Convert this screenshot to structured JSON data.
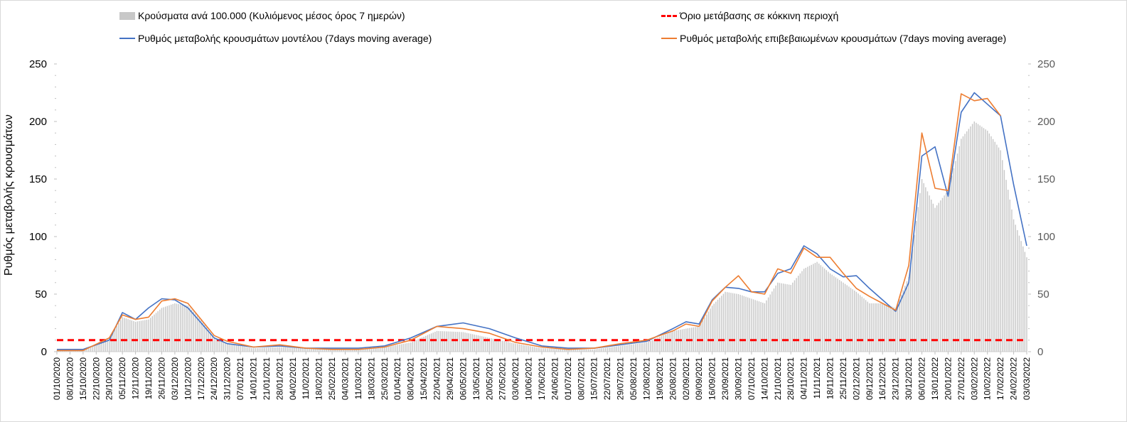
{
  "chart_data": {
    "type": "bar",
    "title": "",
    "ylabel": "Ρυθμός μεταβολής κρουσμάτων",
    "ylim": [
      0,
      250
    ],
    "yticks": [
      "0",
      "50",
      "100",
      "150",
      "200",
      "250"
    ],
    "legend_position": "top",
    "reference_line": {
      "name": "Όριο μετάβασης σε κόκκινη περιοχή",
      "value": 10
    },
    "series": [
      {
        "name": "Κρούσματα ανά 100.000 (Κυλιόμενος μέσος όρος 7 ημερών)",
        "type": "bar",
        "x": [
          "01/10/2020",
          "15/10/2020",
          "29/10/2020",
          "05/11/2020",
          "12/11/2020",
          "19/11/2020",
          "26/11/2020",
          "03/12/2020",
          "10/12/2020",
          "17/12/2020",
          "24/12/2020",
          "31/12/2020",
          "14/01/2021",
          "28/01/2021",
          "11/02/2021",
          "25/02/2021",
          "11/03/2021",
          "25/03/2021",
          "08/04/2021",
          "22/04/2021",
          "06/05/2021",
          "20/05/2021",
          "03/06/2021",
          "17/06/2021",
          "01/07/2021",
          "15/07/2021",
          "29/07/2021",
          "12/08/2021",
          "26/08/2021",
          "09/09/2021",
          "16/09/2021",
          "23/09/2021",
          "30/09/2021",
          "14/10/2021",
          "21/10/2021",
          "28/10/2021",
          "04/11/2021",
          "11/11/2021",
          "18/11/2021",
          "25/11/2021",
          "02/12/2021",
          "09/12/2021",
          "16/12/2021",
          "23/12/2021",
          "30/12/2021",
          "06/01/2022",
          "13/01/2022",
          "20/01/2022",
          "27/01/2022",
          "03/02/2022",
          "10/02/2022",
          "17/02/2022",
          "24/02/2022",
          "03/03/2022"
        ],
        "values": [
          1,
          1,
          12,
          30,
          26,
          28,
          38,
          42,
          40,
          28,
          12,
          7,
          3,
          4,
          3,
          2,
          2,
          4,
          8,
          18,
          17,
          12,
          7,
          3,
          2,
          2,
          5,
          8,
          18,
          22,
          40,
          52,
          50,
          42,
          60,
          58,
          72,
          78,
          68,
          60,
          52,
          42,
          42,
          38,
          65,
          150,
          125,
          140,
          185,
          200,
          192,
          175,
          115,
          82
        ]
      },
      {
        "name": "Ρυθμός μεταβολής κρουσμάτων μοντέλου (7days moving average)",
        "type": "line",
        "color": "#4472c4",
        "x": [
          "01/10/2020",
          "15/10/2020",
          "29/10/2020",
          "05/11/2020",
          "12/11/2020",
          "19/11/2020",
          "26/11/2020",
          "03/12/2020",
          "10/12/2020",
          "17/12/2020",
          "24/12/2020",
          "31/12/2020",
          "14/01/2021",
          "28/01/2021",
          "11/02/2021",
          "25/02/2021",
          "11/03/2021",
          "25/03/2021",
          "08/04/2021",
          "22/04/2021",
          "06/05/2021",
          "20/05/2021",
          "03/06/2021",
          "17/06/2021",
          "01/07/2021",
          "15/07/2021",
          "29/07/2021",
          "12/08/2021",
          "26/08/2021",
          "02/09/2021",
          "09/09/2021",
          "16/09/2021",
          "23/09/2021",
          "30/09/2021",
          "07/10/2021",
          "14/10/2021",
          "21/10/2021",
          "28/10/2021",
          "04/11/2021",
          "11/11/2021",
          "18/11/2021",
          "25/11/2021",
          "02/12/2021",
          "09/12/2021",
          "16/12/2021",
          "23/12/2021",
          "30/12/2021",
          "06/01/2022",
          "13/01/2022",
          "20/01/2022",
          "27/01/2022",
          "03/02/2022",
          "10/02/2022",
          "17/02/2022",
          "24/02/2022",
          "03/03/2022"
        ],
        "values": [
          2,
          2,
          10,
          34,
          28,
          38,
          46,
          45,
          38,
          25,
          12,
          7,
          4,
          5,
          3,
          3,
          3,
          5,
          12,
          22,
          25,
          20,
          12,
          5,
          3,
          3,
          6,
          9,
          20,
          26,
          24,
          45,
          56,
          55,
          52,
          52,
          68,
          72,
          92,
          85,
          72,
          65,
          66,
          55,
          45,
          35,
          60,
          170,
          178,
          135,
          208,
          225,
          215,
          205,
          145,
          92
        ]
      },
      {
        "name": "Ρυθμός μεταβολής επιβεβαιωμένων κρουσμάτων (7days moving average)",
        "type": "line",
        "color": "#ed7d31",
        "x": [
          "01/10/2020",
          "15/10/2020",
          "29/10/2020",
          "05/11/2020",
          "12/11/2020",
          "19/11/2020",
          "26/11/2020",
          "03/12/2020",
          "10/12/2020",
          "17/12/2020",
          "24/12/2020",
          "31/12/2020",
          "14/01/2021",
          "28/01/2021",
          "11/02/2021",
          "25/02/2021",
          "11/03/2021",
          "25/03/2021",
          "08/04/2021",
          "22/04/2021",
          "06/05/2021",
          "20/05/2021",
          "03/06/2021",
          "17/06/2021",
          "01/07/2021",
          "15/07/2021",
          "29/07/2021",
          "12/08/2021",
          "26/08/2021",
          "02/09/2021",
          "09/09/2021",
          "16/09/2021",
          "23/09/2021",
          "30/09/2021",
          "07/10/2021",
          "14/10/2021",
          "21/10/2021",
          "28/10/2021",
          "04/11/2021",
          "11/11/2021",
          "18/11/2021",
          "25/11/2021",
          "02/12/2021",
          "09/12/2021",
          "16/12/2021",
          "23/12/2021",
          "30/12/2021",
          "06/01/2022",
          "13/01/2022",
          "20/01/2022",
          "27/01/2022",
          "03/02/2022",
          "10/02/2022",
          "17/02/2022"
        ],
        "values": [
          1,
          1,
          12,
          32,
          28,
          30,
          44,
          46,
          42,
          28,
          14,
          9,
          4,
          6,
          3,
          2,
          2,
          4,
          10,
          22,
          20,
          16,
          8,
          4,
          2,
          3,
          7,
          10,
          18,
          24,
          22,
          44,
          56,
          66,
          52,
          50,
          72,
          68,
          90,
          82,
          82,
          68,
          55,
          48,
          42,
          36,
          75,
          190,
          142,
          140,
          224,
          218,
          220,
          205
        ]
      }
    ]
  },
  "legend": {
    "bars": "Κρούσματα ανά 100.000 (Κυλιόμενος μέσος όρος 7 ημερών)",
    "red": "Όριο μετάβασης σε κόκκινη περιοχή",
    "blue": "Ρυθμός μεταβολής κρουσμάτων μοντέλου (7days moving average)",
    "orange": "Ρυθμός μεταβολής επιβεβαιωμένων κρουσμάτων (7days moving average)"
  },
  "x_tick_labels": [
    "01/10/2020",
    "08/10/2020",
    "15/10/2020",
    "22/10/2020",
    "29/10/2020",
    "05/11/2020",
    "12/11/2020",
    "19/11/2020",
    "26/11/2020",
    "03/12/2020",
    "10/12/2020",
    "17/12/2020",
    "24/12/2020",
    "31/12/2020",
    "07/01/2021",
    "14/01/2021",
    "21/01/2021",
    "28/01/2021",
    "04/02/2021",
    "11/02/2021",
    "18/02/2021",
    "25/02/2021",
    "04/03/2021",
    "11/03/2021",
    "18/03/2021",
    "25/03/2021",
    "01/04/2021",
    "08/04/2021",
    "15/04/2021",
    "22/04/2021",
    "29/04/2021",
    "06/05/2021",
    "13/05/2021",
    "20/05/2021",
    "27/05/2021",
    "03/06/2021",
    "10/06/2021",
    "17/06/2021",
    "24/06/2021",
    "01/07/2021",
    "08/07/2021",
    "15/07/2021",
    "22/07/2021",
    "29/07/2021",
    "05/08/2021",
    "12/08/2021",
    "19/08/2021",
    "26/08/2021",
    "02/09/2021",
    "09/09/2021",
    "16/09/2021",
    "23/09/2021",
    "30/09/2021",
    "07/10/2021",
    "14/10/2021",
    "21/10/2021",
    "28/10/2021",
    "04/11/2021",
    "11/11/2021",
    "18/11/2021",
    "25/11/2021",
    "02/12/2021",
    "09/12/2021",
    "16/12/2021",
    "23/12/2021",
    "30/12/2021",
    "06/01/2022",
    "13/01/2022",
    "20/01/2022",
    "27/01/2022",
    "03/02/2022",
    "10/02/2022",
    "17/02/2022",
    "24/02/2022",
    "03/03/2022"
  ]
}
